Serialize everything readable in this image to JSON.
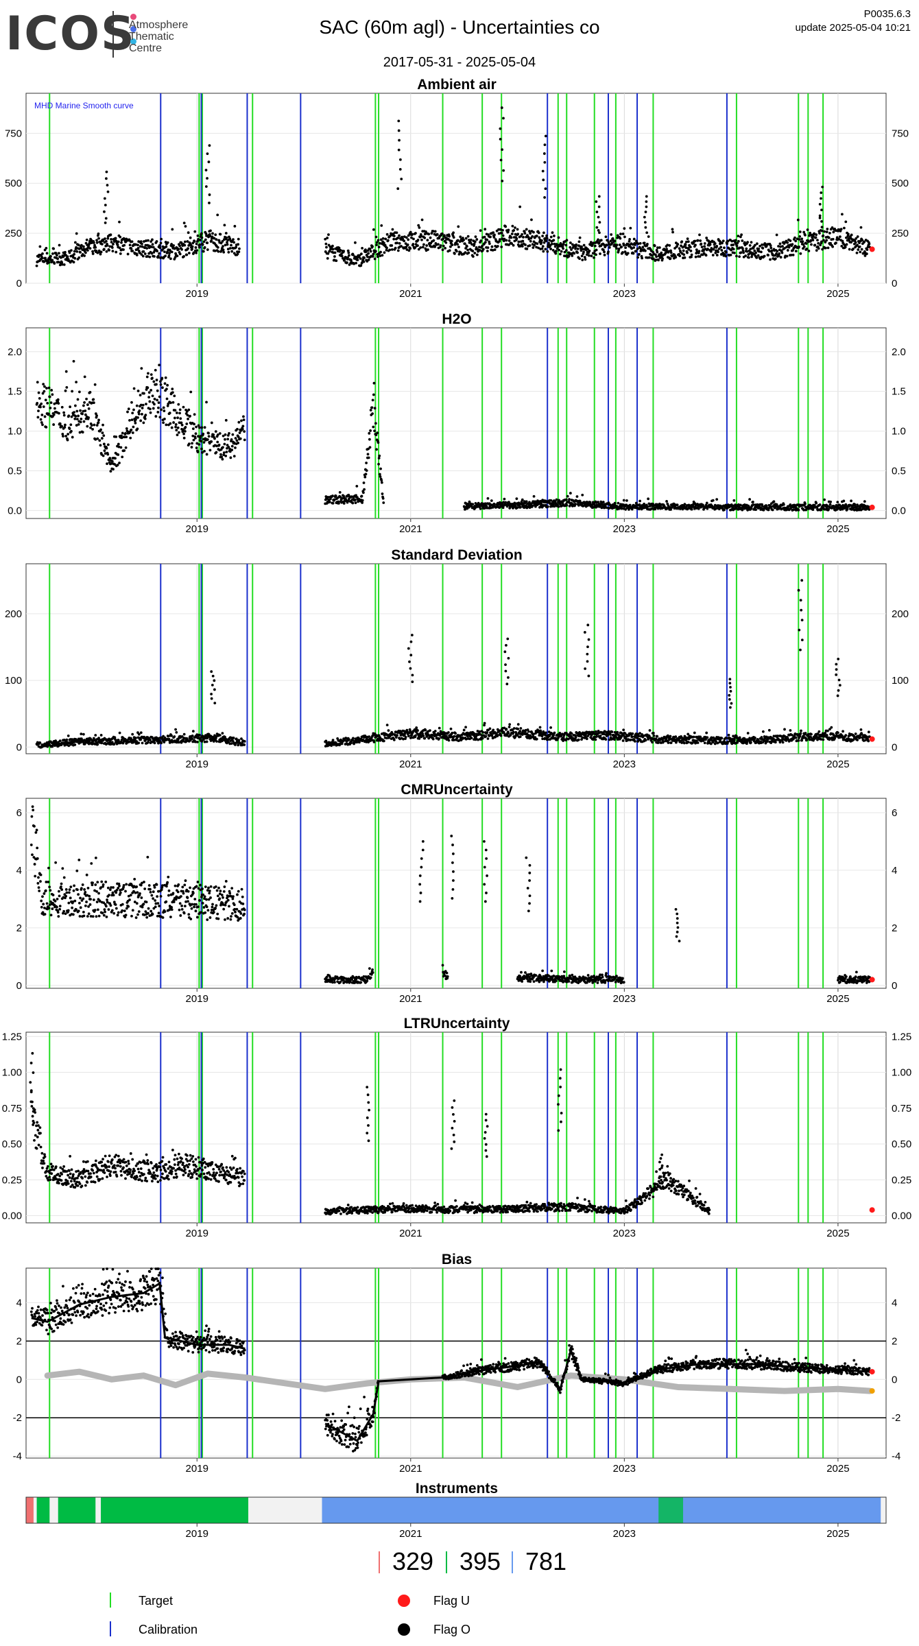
{
  "header": {
    "logo_text": "ICOS",
    "logo_sub": [
      "Atmosphere",
      "Thematic",
      "Centre"
    ],
    "logo_dot_colors": [
      "#e84a7a",
      "#4a6ee8",
      "#33b5e5"
    ],
    "title": "SAC  (60m agl) - Uncertainties co",
    "date_range": "2017-05-31 - 2025-05-04",
    "code": "P0035.6.3",
    "update": "update  2025-05-04 10:21"
  },
  "colors": {
    "target": "#22dd22",
    "calibration": "#1a2fcc",
    "flag_u": "#ff1a1a",
    "flag_o": "#000000",
    "smooth": "#b5b5b5",
    "bias_orange": "#f0a000",
    "inst_red": "#f07070",
    "inst_green": "#00bb44",
    "inst_blue": "#6699ee"
  },
  "chart_data": [
    {
      "type": "scatter",
      "title": "Ambient air",
      "annotation": "MHD Marine Smooth curve",
      "x_ticks": [
        "2019",
        "2021",
        "2023",
        "2025"
      ],
      "y_ticks": [
        "0",
        "250",
        "500",
        "750"
      ],
      "ylim": [
        0,
        950
      ],
      "series": [
        {
          "values": [
            [
              2017.5,
              120
            ],
            [
              2017.8,
              125
            ],
            [
              2017.95,
              175
            ],
            [
              2018.2,
              200
            ],
            [
              2018.5,
              175
            ],
            [
              2018.8,
              160
            ],
            [
              2019.1,
              215
            ],
            [
              2019.4,
              180
            ],
            [
              2020.2,
              165
            ],
            [
              2020.5,
              110
            ],
            [
              2020.8,
              205
            ],
            [
              2021.2,
              215
            ],
            [
              2021.6,
              175
            ],
            [
              2021.9,
              240
            ],
            [
              2022.3,
              200
            ],
            [
              2022.6,
              150
            ],
            [
              2022.9,
              200
            ],
            [
              2023.3,
              150
            ],
            [
              2023.7,
              175
            ],
            [
              2024.0,
              180
            ],
            [
              2024.4,
              155
            ],
            [
              2024.7,
              200
            ],
            [
              2025.0,
              235
            ],
            [
              2025.3,
              170
            ]
          ]
        }
      ],
      "spikes": [
        [
          2018.15,
          590
        ],
        [
          2019.1,
          730
        ],
        [
          2020.9,
          860
        ],
        [
          2021.85,
          930
        ],
        [
          2022.25,
          780
        ],
        [
          2022.75,
          460
        ],
        [
          2023.2,
          460
        ],
        [
          2024.85,
          510
        ]
      ]
    },
    {
      "type": "scatter",
      "title": "H2O",
      "x_ticks": [
        "2019",
        "2021",
        "2023",
        "2025"
      ],
      "y_ticks": [
        "0.0",
        "0.5",
        "1.0",
        "1.5",
        "2.0"
      ],
      "ylim": [
        -0.1,
        2.3
      ],
      "series": [
        {
          "values": [
            [
              2017.5,
              1.4
            ],
            [
              2017.8,
              1.1
            ],
            [
              2018.0,
              1.3
            ],
            [
              2018.2,
              0.5
            ],
            [
              2018.4,
              1.2
            ],
            [
              2018.6,
              1.5
            ],
            [
              2018.8,
              1.2
            ],
            [
              2019.0,
              0.9
            ],
            [
              2019.3,
              0.8
            ],
            [
              2019.45,
              1.0
            ],
            [
              2020.2,
              0.13
            ],
            [
              2020.55,
              0.15
            ],
            [
              2020.65,
              1.3
            ],
            [
              2020.75,
              0.05
            ],
            [
              2021.5,
              0.05
            ],
            [
              2022.0,
              0.07
            ],
            [
              2022.5,
              0.1
            ],
            [
              2023.0,
              0.05
            ],
            [
              2023.5,
              0.05
            ],
            [
              2024.0,
              0.04
            ],
            [
              2024.5,
              0.04
            ],
            [
              2025.0,
              0.04
            ],
            [
              2025.3,
              0.04
            ]
          ]
        }
      ]
    },
    {
      "type": "scatter",
      "title": "Standard Deviation",
      "x_ticks": [
        "2019",
        "2021",
        "2023",
        "2025"
      ],
      "y_ticks": [
        "0",
        "100",
        "200"
      ],
      "ylim": [
        -10,
        275
      ],
      "series": [
        {
          "values": [
            [
              2017.5,
              3
            ],
            [
              2017.9,
              8
            ],
            [
              2018.4,
              10
            ],
            [
              2018.8,
              12
            ],
            [
              2019.2,
              14
            ],
            [
              2019.45,
              5
            ],
            [
              2020.2,
              5
            ],
            [
              2020.6,
              12
            ],
            [
              2021.0,
              20
            ],
            [
              2021.5,
              15
            ],
            [
              2021.9,
              22
            ],
            [
              2022.4,
              15
            ],
            [
              2022.8,
              18
            ],
            [
              2023.3,
              12
            ],
            [
              2023.8,
              10
            ],
            [
              2024.2,
              10
            ],
            [
              2024.6,
              14
            ],
            [
              2024.9,
              18
            ],
            [
              2025.3,
              12
            ]
          ]
        }
      ],
      "spikes": [
        [
          2019.15,
          120
        ],
        [
          2021.0,
          178
        ],
        [
          2021.9,
          172
        ],
        [
          2022.65,
          194
        ],
        [
          2024.0,
          108
        ],
        [
          2024.65,
          265
        ],
        [
          2025.0,
          140
        ]
      ]
    },
    {
      "type": "scatter",
      "title": "CMRUncertainty",
      "x_ticks": [
        "2019",
        "2021",
        "2023",
        "2025"
      ],
      "y_ticks": [
        "0",
        "2",
        "4",
        "6"
      ],
      "ylim": [
        -0.1,
        6.5
      ],
      "series": [
        {
          "values": [
            [
              2017.45,
              5.5
            ],
            [
              2017.55,
              3.0
            ],
            [
              2018.0,
              3.0
            ],
            [
              2018.5,
              2.95
            ],
            [
              2019.0,
              2.9
            ],
            [
              2019.45,
              2.8
            ],
            [
              2020.2,
              0.2
            ],
            [
              2020.6,
              0.2
            ],
            [
              2020.65,
              0.5
            ],
            [
              2021.3,
              0.5
            ],
            [
              2021.35,
              0.25
            ],
            [
              2022.0,
              0.27
            ],
            [
              2022.5,
              0.2
            ],
            [
              2023.0,
              0.2
            ],
            [
              2024.0,
              0.2
            ],
            [
              2025.0,
              0.2
            ],
            [
              2025.3,
              0.2
            ]
          ]
        }
      ],
      "spikes": [
        [
          2021.1,
          5.3
        ],
        [
          2021.4,
          5.5
        ],
        [
          2021.7,
          5.3
        ],
        [
          2022.1,
          4.7
        ],
        [
          2023.5,
          2.8
        ]
      ]
    },
    {
      "type": "scatter",
      "title": "LTRUncertainty",
      "x_ticks": [
        "2019",
        "2021",
        "2023",
        "2025"
      ],
      "y_ticks": [
        "0.00",
        "0.25",
        "0.50",
        "0.75",
        "1.00",
        "1.25"
      ],
      "ylim": [
        -0.05,
        1.28
      ],
      "series": [
        {
          "values": [
            [
              2017.45,
              0.7
            ],
            [
              2017.6,
              0.3
            ],
            [
              2017.9,
              0.25
            ],
            [
              2018.2,
              0.35
            ],
            [
              2018.6,
              0.3
            ],
            [
              2018.9,
              0.35
            ],
            [
              2019.2,
              0.3
            ],
            [
              2019.45,
              0.25
            ],
            [
              2020.2,
              0.03
            ],
            [
              2020.6,
              0.04
            ],
            [
              2021.0,
              0.05
            ],
            [
              2021.5,
              0.04
            ],
            [
              2022.0,
              0.05
            ],
            [
              2022.5,
              0.06
            ],
            [
              2023.0,
              0.03
            ],
            [
              2023.4,
              0.25
            ],
            [
              2023.8,
              0.03
            ],
            [
              2024.5,
              0.03
            ],
            [
              2025.3,
              0.04
            ]
          ]
        }
      ],
      "spikes": [
        [
          2017.45,
          1.2
        ],
        [
          2020.6,
          0.95
        ],
        [
          2021.4,
          0.85
        ],
        [
          2021.7,
          0.75
        ],
        [
          2022.4,
          1.08
        ],
        [
          2023.35,
          0.45
        ]
      ]
    },
    {
      "type": "line",
      "title": "Bias",
      "x_ticks": [
        "2019",
        "2021",
        "2023",
        "2025"
      ],
      "y_ticks": [
        "-4",
        "-2",
        "0",
        "2",
        "4"
      ],
      "ylim": [
        -4.1,
        5.8
      ],
      "ref_lines": [
        2,
        -2
      ],
      "series": [
        {
          "name": "",
          "values": [
            [
              2017.45,
              3.2
            ],
            [
              2017.6,
              3.0
            ],
            [
              2017.9,
              3.9
            ],
            [
              2018.2,
              4.3
            ],
            [
              2018.5,
              4.5
            ],
            [
              2018.65,
              5.0
            ],
            [
              2018.7,
              2.2
            ],
            [
              2019.0,
              1.8
            ],
            [
              2019.3,
              1.8
            ],
            [
              2019.45,
              1.6
            ]
          ]
        },
        {
          "name": "",
          "values": [
            [
              2020.2,
              -2.3
            ],
            [
              2020.5,
              -3.2
            ],
            [
              2020.65,
              -1.8
            ],
            [
              2020.7,
              -0.1
            ],
            [
              2021.3,
              0.1
            ],
            [
              2021.7,
              0.5
            ],
            [
              2022.0,
              0.7
            ],
            [
              2022.2,
              0.9
            ],
            [
              2022.4,
              -0.5
            ],
            [
              2022.5,
              1.5
            ],
            [
              2022.6,
              0.0
            ],
            [
              2023.0,
              -0.2
            ],
            [
              2023.3,
              0.5
            ],
            [
              2023.7,
              0.8
            ],
            [
              2024.2,
              0.8
            ],
            [
              2024.7,
              0.6
            ],
            [
              2025.0,
              0.5
            ],
            [
              2025.3,
              0.4
            ]
          ]
        }
      ],
      "smooth": [
        [
          2017.6,
          0.2
        ],
        [
          2017.9,
          0.4
        ],
        [
          2018.2,
          0.0
        ],
        [
          2018.5,
          0.2
        ],
        [
          2018.8,
          -0.3
        ],
        [
          2019.1,
          0.3
        ],
        [
          2019.45,
          0.1
        ],
        [
          2020.2,
          -0.5
        ],
        [
          2020.6,
          -0.2
        ],
        [
          2021.0,
          0.0
        ],
        [
          2021.5,
          0.1
        ],
        [
          2022.0,
          -0.4
        ],
        [
          2022.5,
          0.2
        ],
        [
          2023.0,
          0.0
        ],
        [
          2023.5,
          -0.4
        ],
        [
          2024.0,
          -0.5
        ],
        [
          2024.5,
          -0.6
        ],
        [
          2025.0,
          -0.5
        ],
        [
          2025.3,
          -0.6
        ]
      ]
    },
    {
      "type": "bar",
      "title": "Instruments",
      "x_ticks": [
        "2019",
        "2021",
        "2023",
        "2025"
      ]
    }
  ],
  "events": {
    "target": [
      2017.62,
      2019.02,
      2019.05,
      2019.52,
      2020.67,
      2020.7,
      2021.3,
      2021.67,
      2021.85,
      2022.38,
      2022.46,
      2022.72,
      2022.92,
      2023.27,
      2024.05,
      2024.63,
      2024.72,
      2024.86
    ],
    "calibration": [
      2018.66,
      2019.04,
      2019.47,
      2019.97,
      2022.28,
      2022.85,
      2023.12,
      2023.96
    ]
  },
  "instruments": [
    {
      "start": 2017.4,
      "end": 2017.47,
      "color": "#f07070"
    },
    {
      "start": 2017.5,
      "end": 2017.62,
      "color": "#00bb44"
    },
    {
      "start": 2017.7,
      "end": 2018.05,
      "color": "#00bb44"
    },
    {
      "start": 2018.1,
      "end": 2019.48,
      "color": "#00bb44"
    },
    {
      "start": 2020.17,
      "end": 2025.4,
      "color": "#6699ee"
    },
    {
      "start": 2023.32,
      "end": 2023.55,
      "color": "#00bb44",
      "thin": true
    }
  ],
  "legend": {
    "count_red": "329",
    "count_green": "395",
    "count_blue": "781",
    "target_label": "Target",
    "calibration_label": "Calibration",
    "flag_u_label": "Flag U",
    "flag_o_label": "Flag O"
  }
}
